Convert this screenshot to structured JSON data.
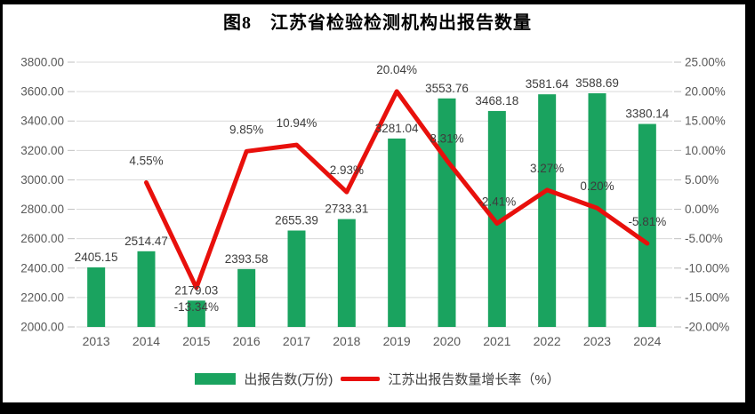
{
  "chart_data": {
    "type": "bar+line combo",
    "title": "图8　江苏省检验检测机构出报告数量",
    "categories": [
      "2013",
      "2014",
      "2015",
      "2016",
      "2017",
      "2018",
      "2019",
      "2020",
      "2021",
      "2022",
      "2023",
      "2024"
    ],
    "series": [
      {
        "name": "出报告数(万份)",
        "type": "bar",
        "axis": "left",
        "values": [
          2405.15,
          2514.47,
          2179.03,
          2393.58,
          2655.39,
          2733.31,
          3281.04,
          3553.76,
          3468.18,
          3581.64,
          3588.69,
          3380.14
        ],
        "labels": [
          "2405.15",
          "2514.47",
          "2179.03",
          "2393.58",
          "2655.39",
          "2733.31",
          "3281.04",
          "3553.76",
          "3468.18",
          "3581.64",
          "3588.69",
          "3380.14"
        ]
      },
      {
        "name": "江苏出报告数量增长率（%）",
        "type": "line",
        "axis": "right",
        "values": [
          null,
          4.55,
          -13.34,
          9.85,
          10.94,
          2.93,
          20.04,
          8.31,
          -2.41,
          3.27,
          0.2,
          -5.81
        ],
        "labels": [
          null,
          "4.55%",
          "-13.34%",
          "9.85%",
          "10.94%",
          "2.93%",
          "20.04%",
          "8.31%",
          "-2.41%",
          "3.27%",
          "0.20%",
          "-5.81%"
        ]
      }
    ],
    "left_axis": {
      "min": 2000,
      "max": 3800,
      "step": 200,
      "ticks": [
        "3800.00",
        "3600.00",
        "3400.00",
        "3200.00",
        "3000.00",
        "2800.00",
        "2600.00",
        "2400.00",
        "2200.00",
        "2000.00"
      ]
    },
    "right_axis": {
      "min": -20,
      "max": 25,
      "step": 5,
      "ticks": [
        "25.00%",
        "20.00%",
        "15.00%",
        "10.00%",
        "5.00%",
        "0.00%",
        "-5.00%",
        "-10.00%",
        "-15.00%",
        "-20.00%"
      ]
    },
    "grid": true,
    "legend_position": "bottom",
    "legend": [
      "出报告数(万份)",
      "江苏出报告数量增长率（%）"
    ]
  },
  "colors": {
    "bar": "#1aa35f",
    "line": "#e8100c",
    "grid": "#d9d9d9",
    "tick_mark": "#bfbfbf",
    "axis_text": "#595959",
    "data_label_text": "#3d3d3d",
    "background": "#ffffff",
    "frame": "#000000"
  }
}
